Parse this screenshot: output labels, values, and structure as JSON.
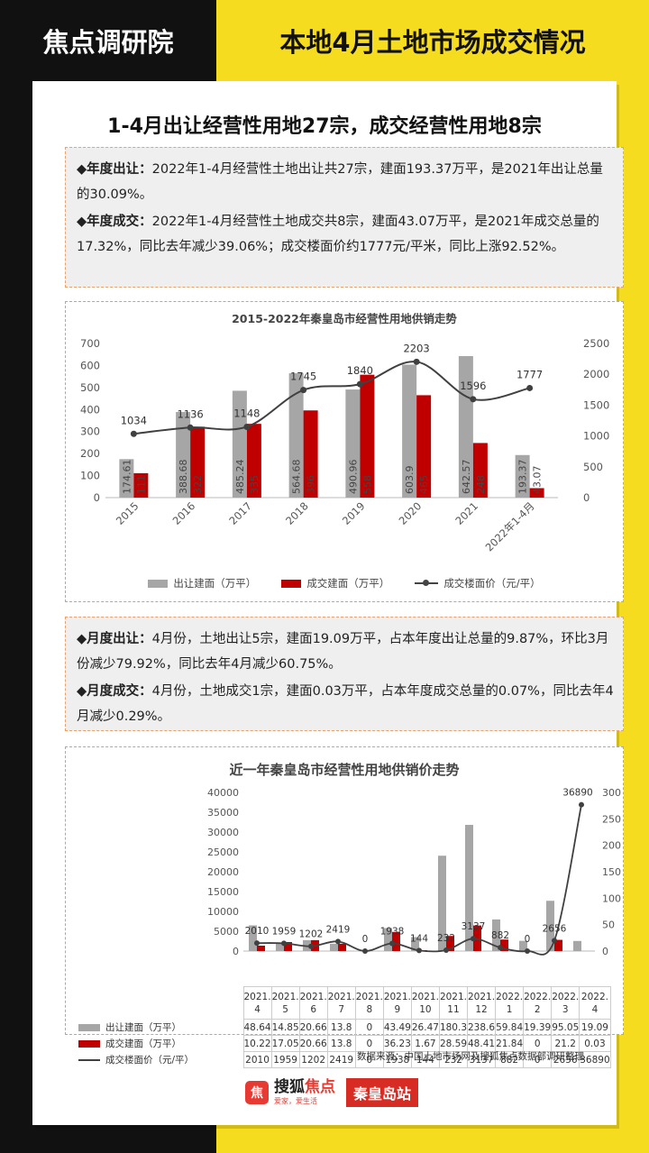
{
  "header": {
    "brand": "焦点调研院",
    "title": "本地4月土地市场成交情况"
  },
  "headline": "1-4月出让经营性用地27宗，成交经营性用地8宗",
  "annual": {
    "p1_label": "◆年度出让：",
    "p1_text": "2022年1-4月经营性土地出让共27宗，建面193.37万平，是2021年出让总量的30.09%。",
    "p2_label": "◆年度成交：",
    "p2_text": "2022年1-4月经营性土地成交共8宗，建面43.07万平，是2021年成交总量的17.32%，同比去年减少39.06%；成交楼面价约1777元/平米，同比上涨92.52%。"
  },
  "monthly": {
    "p1_label": "◆月度出让：",
    "p1_text": "4月份，土地出让5宗，建面19.09万平，占本年度出让总量的9.87%，环比3月份减少79.92%，同比去年4月减少60.75%。",
    "p2_label": "◆月度成交：",
    "p2_text": "4月份，土地成交1宗，建面0.03万平，占本年度成交总量的0.07%，同比去年4月减少0.29%。"
  },
  "colors": {
    "supply": "#a6a6a6",
    "deal": "#c00000",
    "price": "#404040"
  },
  "chart_data": [
    {
      "type": "bar",
      "title": "2015-2022年秦皇岛市经营性用地供销走势",
      "categories": [
        "2015",
        "2016",
        "2017",
        "2018",
        "2019",
        "2020",
        "2021",
        "2022年1-4月"
      ],
      "series": [
        {
          "name": "出让建面（万平）",
          "axis": "left",
          "values": [
            174.61,
            388.68,
            485.24,
            564.68,
            490.96,
            603.9,
            642.57,
            193.37
          ],
          "labels": [
            "174.61",
            "388.68",
            "485.24",
            "564.68",
            "490.96",
            "603.9",
            "642.57",
            "193.37"
          ]
        },
        {
          "name": "成交建面（万平）",
          "axis": "left",
          "values": [
            111.0,
            322.0,
            335.0,
            396.0,
            558.0,
            465.0,
            248.0,
            43.07
          ],
          "labels": [
            "111",
            "322",
            "335",
            "396",
            "558",
            "465",
            "248",
            "43.07"
          ]
        },
        {
          "name": "成交楼面价（元/平）",
          "axis": "right",
          "type": "line",
          "values": [
            1034,
            1136,
            1148,
            1745,
            1840,
            2203,
            1596,
            1777
          ],
          "labels": [
            "1034",
            "1136",
            "1148",
            "1745",
            "1840",
            "2203",
            "1596",
            "1777"
          ]
        }
      ],
      "y_left": {
        "range": [
          0,
          700
        ],
        "ticks": [
          "0",
          "100",
          "200",
          "300",
          "400",
          "500",
          "600",
          "700"
        ]
      },
      "y_right": {
        "range": [
          0,
          2500
        ],
        "ticks": [
          "0",
          "500",
          "1000",
          "1500",
          "2000",
          "2500"
        ]
      },
      "legend": "bottom"
    },
    {
      "type": "bar",
      "title": "近一年秦皇岛市经营性用地供销价走势",
      "categories": [
        [
          "2021.",
          "4"
        ],
        [
          "2021.",
          "5"
        ],
        [
          "2021.",
          "6"
        ],
        [
          "2021.",
          "7"
        ],
        [
          "2021.",
          "8"
        ],
        [
          "2021.",
          "9"
        ],
        [
          "2021.",
          "10"
        ],
        [
          "2021.",
          "11"
        ],
        [
          "2021.",
          "12"
        ],
        [
          "2022.",
          "1"
        ],
        [
          "2022.",
          "2"
        ],
        [
          "2022.",
          "3"
        ],
        [
          "2022.",
          "4"
        ]
      ],
      "series": [
        {
          "name": "出让建面（万平）",
          "axis": "right",
          "values": [
            48.64,
            14.85,
            20.66,
            13.8,
            0,
            43.49,
            26.47,
            180.3,
            238.6,
            59.84,
            19.39,
            95.05,
            19.09
          ],
          "labels": [
            "48.64",
            "14.85",
            "20.66",
            "13.8",
            "0",
            "43.49",
            "26.47",
            "180.3",
            "238.6",
            "59.84",
            "19.39",
            "95.05",
            "19.09"
          ]
        },
        {
          "name": "成交建面（万平）",
          "axis": "right",
          "values": [
            10.22,
            17.05,
            20.66,
            13.8,
            0,
            36.23,
            1.67,
            28.59,
            48.41,
            21.84,
            0,
            21.2,
            0.03
          ],
          "labels": [
            "10.22",
            "17.05",
            "20.66",
            "13.8",
            "0",
            "36.23",
            "1.67",
            "28.59",
            "48.41",
            "21.84",
            "0",
            "21.2",
            "0.03"
          ]
        },
        {
          "name": "成交楼面价（元/平）",
          "axis": "left",
          "type": "line",
          "values": [
            2010,
            1959,
            1202,
            2419,
            0,
            1938,
            144,
            232,
            3137,
            882,
            0,
            2656,
            36890
          ],
          "labels": [
            "2010",
            "1959",
            "1202",
            "2419",
            "0",
            "1938",
            "144",
            "232",
            "3137",
            "882",
            "0",
            "2656",
            "36890"
          ]
        }
      ],
      "y_left": {
        "range": [
          0,
          40000
        ],
        "ticks": [
          "0",
          "5000",
          "10000",
          "15000",
          "20000",
          "25000",
          "30000",
          "35000",
          "40000"
        ]
      },
      "y_right": {
        "range": [
          0,
          300
        ],
        "ticks": [
          "0",
          "50",
          "100",
          "150",
          "200",
          "250",
          "300"
        ]
      },
      "legend": "table"
    }
  ],
  "source": "数据来源：中国土地市场网及搜狐焦点数据部调研整理",
  "footer": {
    "logo_mark": "焦",
    "logo_a": "搜狐",
    "logo_b": "焦点",
    "slogan": "爱家，爱生活",
    "station": "秦皇岛站"
  }
}
